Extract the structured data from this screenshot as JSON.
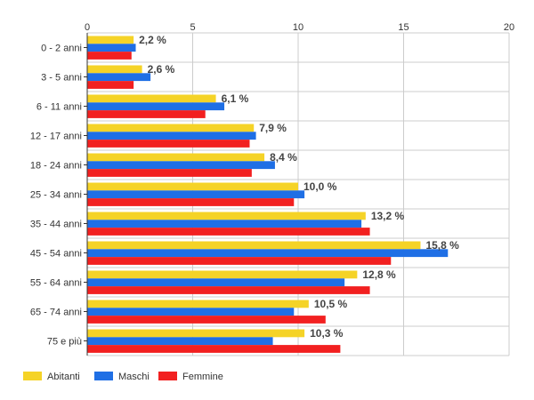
{
  "chart_data": {
    "type": "bar",
    "orientation": "horizontal",
    "title": "",
    "xlabel": "",
    "ylabel": "",
    "xlim": [
      0,
      20
    ],
    "x_ticks": [
      "0",
      "5",
      "10",
      "15",
      "20"
    ],
    "x_tick_values": [
      0,
      5,
      10,
      15,
      20
    ],
    "grid": true,
    "legend_position": "bottom-left",
    "categories": [
      "0 - 2 anni",
      "3 - 5 anni",
      "6 - 11 anni",
      "12 - 17 anni",
      "18 - 24 anni",
      "25 - 34 anni",
      "35 - 44 anni",
      "45 - 54 anni",
      "55 - 64 anni",
      "65 - 74 anni",
      "75 e più"
    ],
    "series": [
      {
        "name": "Abitanti",
        "color": "#f5d327",
        "values": [
          2.2,
          2.6,
          6.1,
          7.9,
          8.4,
          10.0,
          13.2,
          15.8,
          12.8,
          10.5,
          10.3
        ]
      },
      {
        "name": "Maschi",
        "color": "#1f6fe5",
        "values": [
          2.3,
          3.0,
          6.5,
          8.0,
          8.9,
          10.3,
          13.0,
          17.1,
          12.2,
          9.8,
          8.8
        ]
      },
      {
        "name": "Femmine",
        "color": "#f22020",
        "values": [
          2.1,
          2.2,
          5.6,
          7.7,
          7.8,
          9.8,
          13.4,
          14.4,
          13.4,
          11.3,
          12.0
        ]
      }
    ],
    "data_labels": [
      "2,2 %",
      "2,6 %",
      "6,1 %",
      "7,9 %",
      "8,4 %",
      "10,0 %",
      "13,2 %",
      "15,8 %",
      "12,8 %",
      "10,5 %",
      "10,3 %"
    ]
  }
}
